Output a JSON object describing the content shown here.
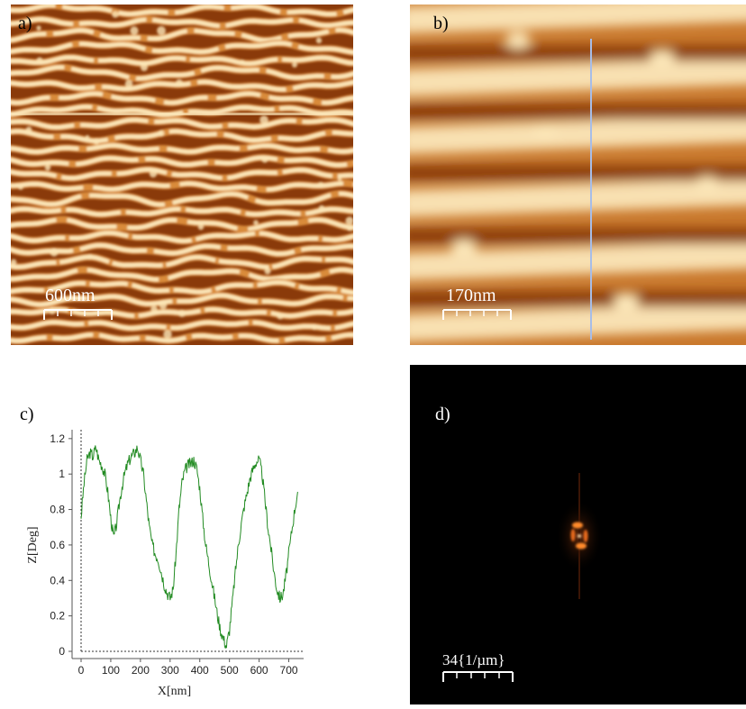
{
  "panels": {
    "a": {
      "label": "a)",
      "scalebar": "600nm"
    },
    "b": {
      "label": "b)",
      "scalebar": "170nm"
    },
    "c": {
      "label": "c)"
    },
    "d": {
      "label": "d)",
      "scalebar": "34{1/µm}"
    }
  },
  "colors": {
    "afm_dark": "#7a2e04",
    "afm_mid": "#d98b3a",
    "afm_light": "#fbe6b8",
    "profile_line": "#228b22",
    "linescan": "#a7bde8",
    "fft_spot": "#ff8a2a"
  },
  "chart_data": {
    "type": "line",
    "xlabel": "X[nm]",
    "ylabel": "Z[Deg]",
    "xlim": [
      0,
      750
    ],
    "ylim": [
      0,
      1.25
    ],
    "xticks": [
      "0",
      "100",
      "200",
      "300",
      "400",
      "500",
      "600",
      "700"
    ],
    "yticks": [
      "0",
      "0.2",
      "0.4",
      "0.6",
      "0.8",
      "1",
      "1.2"
    ],
    "grid": false,
    "series": [
      {
        "x": [
          0,
          10,
          20,
          30,
          40,
          50,
          60,
          70,
          80,
          90,
          100,
          110,
          120,
          130,
          140,
          150,
          160,
          170,
          180,
          190,
          200,
          210,
          220,
          230,
          240,
          250,
          260,
          270,
          280,
          290,
          300,
          310,
          320,
          330,
          340,
          350,
          360,
          370,
          380,
          390,
          400,
          410,
          420,
          430,
          440,
          450,
          460,
          470,
          480,
          490,
          500,
          510,
          520,
          530,
          540,
          550,
          560,
          570,
          580,
          590,
          600,
          610,
          620,
          630,
          640,
          650,
          660,
          670,
          680,
          690,
          700,
          710,
          720,
          730
        ],
        "y": [
          0.76,
          0.95,
          1.08,
          1.12,
          1.1,
          1.15,
          1.08,
          1.05,
          1.0,
          0.9,
          0.75,
          0.64,
          0.72,
          0.85,
          0.95,
          1.02,
          1.07,
          1.1,
          1.12,
          1.15,
          1.08,
          1.0,
          0.85,
          0.7,
          0.6,
          0.55,
          0.52,
          0.45,
          0.38,
          0.33,
          0.3,
          0.35,
          0.55,
          0.8,
          0.95,
          1.02,
          1.05,
          1.06,
          1.08,
          1.03,
          0.92,
          0.75,
          0.6,
          0.5,
          0.4,
          0.3,
          0.2,
          0.12,
          0.07,
          0.03,
          0.12,
          0.28,
          0.45,
          0.6,
          0.72,
          0.82,
          0.9,
          0.98,
          1.03,
          1.07,
          1.08,
          1.0,
          0.85,
          0.7,
          0.58,
          0.45,
          0.35,
          0.3,
          0.32,
          0.42,
          0.55,
          0.68,
          0.8,
          0.9
        ]
      }
    ]
  }
}
